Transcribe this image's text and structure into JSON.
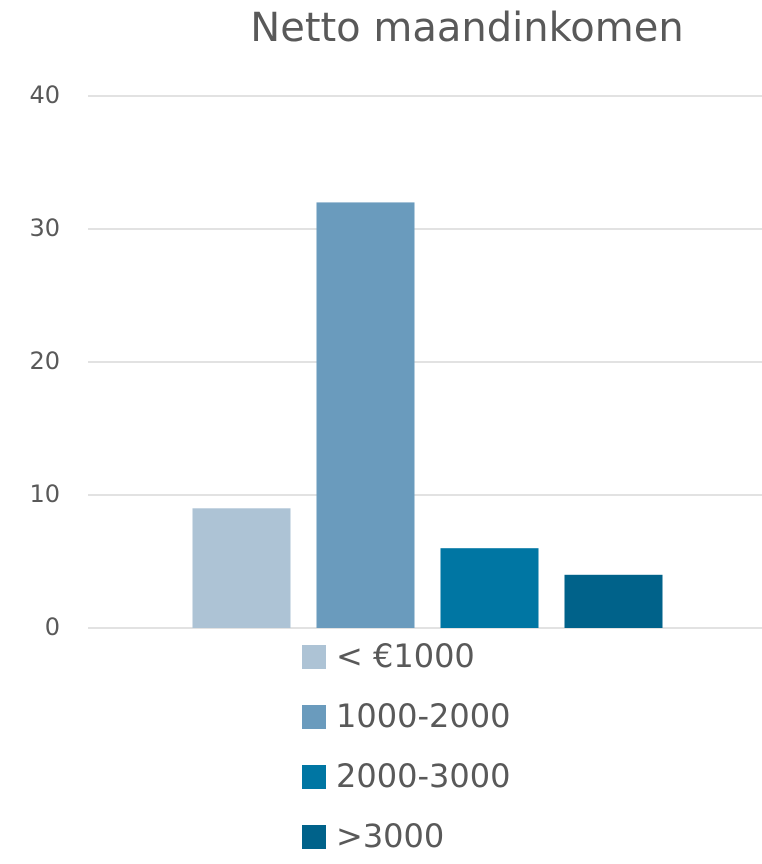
{
  "chart_data": {
    "type": "bar",
    "title": "Netto maandinkomen",
    "categories": [
      null
    ],
    "series": [
      {
        "name": "< €1000",
        "color": "#adc3d5",
        "values": [
          9
        ]
      },
      {
        "name": "1000-2000",
        "color": "#6a9bbd",
        "values": [
          32
        ]
      },
      {
        "name": "2000-3000",
        "color": "#0076a3",
        "values": [
          6
        ]
      },
      {
        "name": ">3000",
        "color": "#00628a",
        "values": [
          4
        ]
      }
    ],
    "ylim": [
      0,
      40
    ],
    "yticks": [
      0,
      10,
      20,
      30,
      40
    ],
    "grid": true,
    "legend": "bottom"
  }
}
